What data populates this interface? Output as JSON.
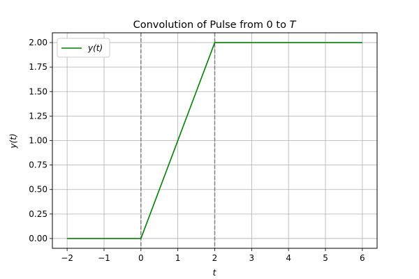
{
  "chart_data": {
    "type": "line",
    "title": "Convolution of Pulse from 0 to ",
    "title_var": "T",
    "xlabel": "t",
    "ylabel": "y(t)",
    "xlim": [
      -2.4,
      6.4
    ],
    "ylim": [
      -0.1,
      2.1
    ],
    "x_ticks": [
      -2,
      -1,
      0,
      1,
      2,
      3,
      4,
      5,
      6
    ],
    "x_tick_labels": [
      "−2",
      "−1",
      "0",
      "1",
      "2",
      "3",
      "4",
      "5",
      "6"
    ],
    "y_ticks": [
      0,
      0.25,
      0.5,
      0.75,
      1.0,
      1.25,
      1.5,
      1.75,
      2.0
    ],
    "y_tick_labels": [
      "0.00",
      "0.25",
      "0.50",
      "0.75",
      "1.00",
      "1.25",
      "1.50",
      "1.75",
      "2.00"
    ],
    "grid": true,
    "legend_position": "top-left",
    "series": [
      {
        "name": "y(t)",
        "color": "#008000",
        "x": [
          -2,
          0,
          2,
          6
        ],
        "y": [
          0,
          0,
          2,
          2
        ]
      }
    ],
    "vlines": [
      {
        "x": 0,
        "color": "#808080",
        "style": "dashed"
      },
      {
        "x": 2,
        "color": "#808080",
        "style": "dashed"
      }
    ]
  }
}
